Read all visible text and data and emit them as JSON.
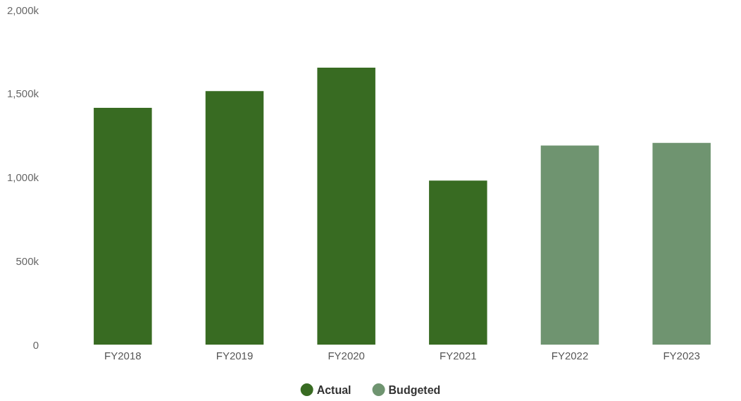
{
  "chart_data": {
    "type": "bar",
    "stacked": true,
    "categories": [
      "FY2018",
      "FY2019",
      "FY2020",
      "FY2021",
      "FY2022",
      "FY2023"
    ],
    "series": [
      {
        "name": "Actual",
        "color": "#386b22",
        "values": [
          1415,
          1515,
          1655,
          980,
          null,
          null
        ]
      },
      {
        "name": "Budgeted",
        "color": "#6f9470",
        "values": [
          null,
          null,
          null,
          null,
          1190,
          1205
        ]
      }
    ],
    "ylim": [
      0,
      2000
    ],
    "yticks": [
      {
        "value": 0,
        "label": "0"
      },
      {
        "value": 500,
        "label": "500k"
      },
      {
        "value": 1000,
        "label": "1,000k"
      },
      {
        "value": 1500,
        "label": "1,500k"
      },
      {
        "value": 2000,
        "label": "2,000k"
      }
    ],
    "grid": false,
    "legend": "bottom"
  }
}
